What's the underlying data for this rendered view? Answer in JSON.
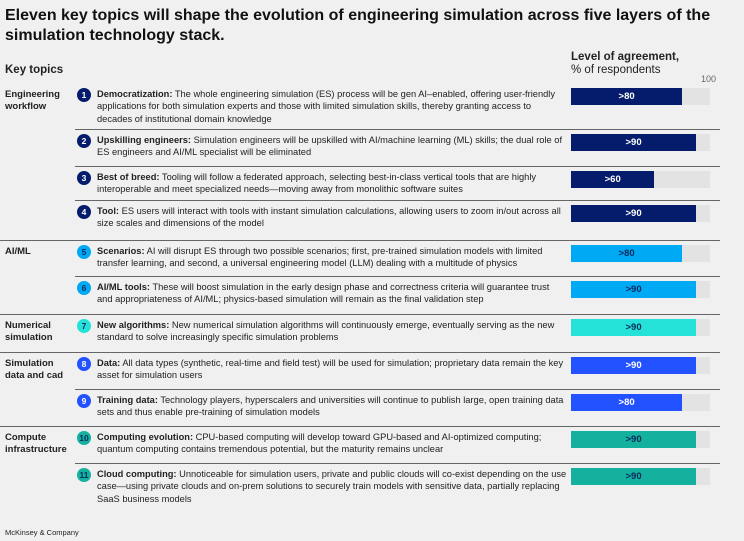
{
  "title": "Eleven key topics will shape the evolution of engineering simulation across five layers of the simulation technology stack.",
  "key_topics_label": "Key topics",
  "source": "McKinsey & Company",
  "chart_data": {
    "type": "bar",
    "title": "Level of agreement,",
    "subtitle": "% of respondents",
    "axis_max_label": "100",
    "xlim": [
      0,
      100
    ],
    "colors": {
      "engineering": "#051c6c",
      "aiml": "#00a9f4",
      "numerical": "#25e2d8",
      "data": "#2251ff",
      "compute": "#14b29e"
    },
    "rows": [
      {
        "n": "1",
        "group": "Engineering workflow",
        "color": "#051c6c",
        "textcolor": "#ffffff",
        "title": "Democratization:",
        "text": " The whole engineering simulation (ES) process will be gen AI–enabled, offering user-friendly applications for both simulation experts and those with limited simulation skills, thereby granting access to decades of institutional domain knowledge",
        "value": 80,
        "label": ">80"
      },
      {
        "n": "2",
        "group": "",
        "color": "#051c6c",
        "textcolor": "#ffffff",
        "title": "Upskilling engineers:",
        "text": " Simulation engineers will be upskilled with AI/machine learning (ML) skills; the dual role of ES engineers and AI/ML specialist will be eliminated",
        "value": 90,
        "label": ">90"
      },
      {
        "n": "3",
        "group": "",
        "color": "#051c6c",
        "textcolor": "#ffffff",
        "title": "Best of breed:",
        "text": " Tooling will follow a federated approach, selecting best-in-class vertical tools that are highly interoperable and meet specialized needs—moving away from monolithic software suites",
        "value": 60,
        "label": ">60"
      },
      {
        "n": "4",
        "group": "",
        "color": "#051c6c",
        "textcolor": "#ffffff",
        "title": "Tool:",
        "text": " ES users will interact with tools with instant simulation calculations, allowing users to zoom in/out across all size scales and dimensions of the model",
        "value": 90,
        "label": ">90"
      },
      {
        "n": "5",
        "group": "AI/ML",
        "color": "#00a9f4",
        "textcolor": "#0a2a5c",
        "title": "Scenarios:",
        "text": " AI will disrupt ES through two possible scenarios; first, pre-trained simulation models with limited transfer learning, and second, a universal engineering model (LLM) dealing with a multitude of physics",
        "value": 80,
        "label": ">80"
      },
      {
        "n": "6",
        "group": "",
        "color": "#00a9f4",
        "textcolor": "#0a2a5c",
        "title": "AI/ML tools:",
        "text": " These will boost simulation in the early design phase and correctness criteria will guarantee trust and appropriateness of AI/ML; physics-based simulation will remain as the final validation step",
        "value": 90,
        "label": ">90"
      },
      {
        "n": "7",
        "group": "Numerical simulation",
        "color": "#25e2d8",
        "textcolor": "#0a2a5c",
        "title": "New algorithms:",
        "text": " New numerical simulation algorithms will continuously emerge, eventually serving as the new standard to solve increasingly specific simulation problems",
        "value": 90,
        "label": ">90"
      },
      {
        "n": "8",
        "group": "Simulation data and cad",
        "color": "#2251ff",
        "textcolor": "#ffffff",
        "title": "Data:",
        "text": " All data types (synthetic, real-time and field test) will be used for simulation; proprietary data remain the key asset for simulation users",
        "value": 90,
        "label": ">90"
      },
      {
        "n": "9",
        "group": "",
        "color": "#2251ff",
        "textcolor": "#ffffff",
        "title": "Training data:",
        "text": " Technology players, hyperscalers and universities will continue to publish large, open training data sets and thus enable pre-training of simulation models",
        "value": 80,
        "label": ">80"
      },
      {
        "n": "10",
        "group": "Compute infrastructure",
        "color": "#14b29e",
        "textcolor": "#0a2a5c",
        "title": "Computing evolution:",
        "text": " CPU-based computing will develop toward GPU-based and AI-optimized computing; quantum computing contains tremendous potential, but the maturity remains unclear",
        "value": 90,
        "label": ">90"
      },
      {
        "n": "11",
        "group": "",
        "color": "#14b29e",
        "textcolor": "#0a2a5c",
        "title": "Cloud computing:",
        "text": " Unnoticeable for simulation users, private and public clouds will co-exist depending on the use case—using private clouds and on-prem solutions to securely train models with sensitive data, partially replacing SaaS business models",
        "value": 90,
        "label": ">90"
      }
    ]
  }
}
